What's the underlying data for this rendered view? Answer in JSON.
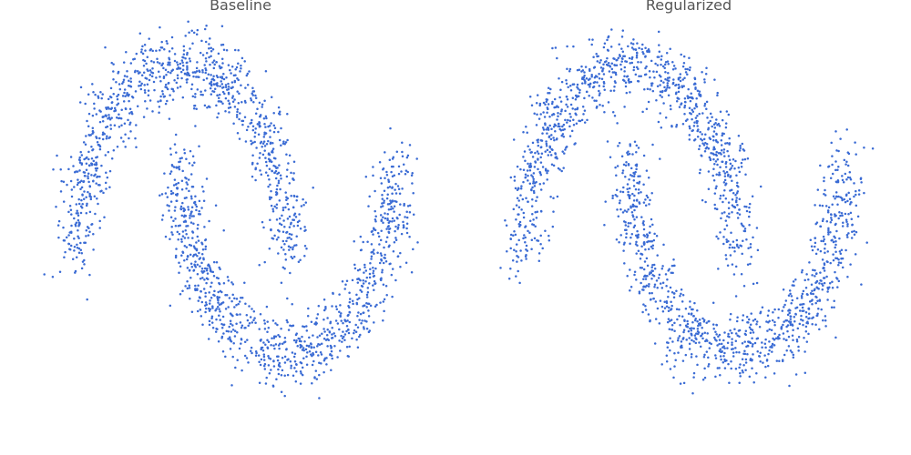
{
  "chart_data": [
    {
      "type": "scatter",
      "title": "Baseline",
      "xlabel": "",
      "ylabel": "",
      "xlim": [
        -1.35,
        2.45
      ],
      "ylim": [
        -0.85,
        1.25
      ],
      "grid": false,
      "color": "#3a6bd4",
      "series": [
        {
          "distribution": "two-moons",
          "upper_moon": {
            "center": [
              0.0,
              0.0
            ],
            "radius": 1.0,
            "noise_sd": 0.1,
            "count": 1000
          },
          "lower_moon": {
            "center": [
              1.0,
              0.5
            ],
            "radius": 1.0,
            "noise_sd": 0.1,
            "count": 1000
          }
        }
      ]
    },
    {
      "type": "scatter",
      "title": "Regularized",
      "xlabel": "",
      "ylabel": "",
      "xlim": [
        -1.35,
        2.45
      ],
      "ylim": [
        -0.85,
        1.25
      ],
      "grid": false,
      "color": "#3a6bd4",
      "series": [
        {
          "distribution": "two-moons",
          "upper_moon": {
            "center": [
              0.0,
              0.0
            ],
            "radius": 1.0,
            "noise_sd": 0.1,
            "count": 1000
          },
          "lower_moon": {
            "center": [
              1.0,
              0.5
            ],
            "radius": 1.0,
            "noise_sd": 0.1,
            "count": 1000
          }
        }
      ]
    }
  ]
}
